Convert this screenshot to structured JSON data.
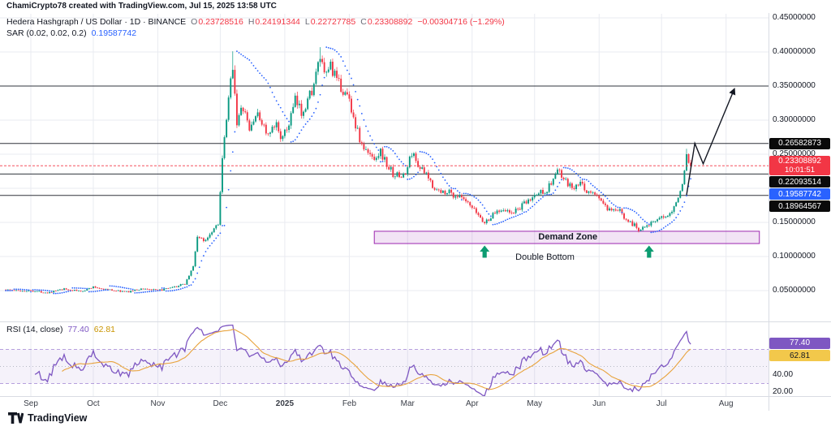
{
  "attribution": "ChamiCrypto78 created with TradingView.com, Jul 15, 2025 13:58 UTC",
  "legend": {
    "title": "Hedera Hashgraph / US Dollar · 1D · BINANCE",
    "o_label": "O",
    "o_value": "0.23728516",
    "h_label": "H",
    "h_value": "0.24191344",
    "l_label": "L",
    "l_value": "0.22727785",
    "c_label": "C",
    "c_value": "0.23308892",
    "change": "−0.00304716 (−1.29%)",
    "sar_label": "SAR (0.02, 0.02, 0.2)",
    "sar_value": "0.19587742",
    "rsi_label": "RSI (14, close)",
    "rsi_value": "77.40",
    "rsi_ma_value": "62.81"
  },
  "price_axis": {
    "plain": [
      {
        "text": "0.45000000",
        "value": 0.45
      },
      {
        "text": "0.40000000",
        "value": 0.4
      },
      {
        "text": "0.35000000",
        "value": 0.35
      },
      {
        "text": "0.30000000",
        "value": 0.3
      },
      {
        "text": "0.25000000",
        "value": 0.25
      },
      {
        "text": "0.15000000",
        "value": 0.15
      },
      {
        "text": "0.10000000",
        "value": 0.1
      },
      {
        "text": "0.05000000",
        "value": 0.05
      }
    ],
    "boxed": [
      {
        "text": "0.26582873",
        "value": 0.26582873,
        "style": "black"
      },
      {
        "text": "0.23308892",
        "line2": "10:01:51",
        "value": 0.23308892,
        "style": "red"
      },
      {
        "text": "0.22093514",
        "value": 0.22093514,
        "style": "black"
      },
      {
        "text": "0.19587742",
        "value": 0.19587742,
        "style": "blue"
      },
      {
        "text": "0.18964567",
        "value": 0.18964567,
        "style": "black"
      }
    ]
  },
  "rsi_axis": {
    "plain": [
      {
        "text": "40.00",
        "value": 40
      },
      {
        "text": "20.00",
        "value": 20
      }
    ],
    "badges": [
      {
        "text": "77.40",
        "value": 77.4,
        "style": "purple"
      },
      {
        "text": "62.81",
        "value": 62.81,
        "style": "yellow"
      }
    ]
  },
  "time_axis": {
    "labels": [
      {
        "text": "Sep",
        "day": 0
      },
      {
        "text": "Oct",
        "day": 30
      },
      {
        "text": "Nov",
        "day": 61
      },
      {
        "text": "Dec",
        "day": 91
      },
      {
        "text": "2025",
        "day": 122,
        "bold": true
      },
      {
        "text": "Feb",
        "day": 153
      },
      {
        "text": "Mar",
        "day": 181
      },
      {
        "text": "Apr",
        "day": 212
      },
      {
        "text": "May",
        "day": 242
      },
      {
        "text": "Jun",
        "day": 273
      },
      {
        "text": "Jul",
        "day": 303
      },
      {
        "text": "Aug",
        "day": 334
      }
    ]
  },
  "annotations": {
    "demand_zone_label": "Demand Zone",
    "demand_zone_label_day": 258,
    "double_bottom_label": "Double Bottom",
    "double_bottom_label_day": 247
  },
  "logo": {
    "name": "TradingView"
  },
  "colors": {
    "up": "#089981",
    "down": "#F23645",
    "sar": "#2962FF",
    "rsi": "#7E57C2",
    "rsi_ma": "#E8A33D",
    "rsi_band_fill": "rgba(126,87,194,0.08)",
    "rsi_band_line": "rgba(126,87,194,0.55)",
    "grid": "#E9EBF1",
    "separator": "#D9DCE3",
    "hline": "#30343C",
    "zone_fill": "rgba(156,39,176,0.13)",
    "zone_stroke": "#9C27B0",
    "arrow": "#0C9C71",
    "projection": "#131722"
  },
  "chart_data": {
    "type": "candlestick",
    "title": "Hedera Hashgraph / US Dollar, 1D, BINANCE",
    "x_range": {
      "start": "Sep 2024",
      "end": "Aug 2025"
    },
    "price_axis_values": [
      0.05,
      0.1,
      0.15,
      0.2,
      0.25,
      0.3,
      0.35,
      0.4,
      0.45
    ],
    "day_start": -12,
    "day_end": 317,
    "price_anchors": [
      [
        -12,
        0.0515
      ],
      [
        -6,
        0.0495
      ],
      [
        0,
        0.05
      ],
      [
        8,
        0.047
      ],
      [
        16,
        0.052
      ],
      [
        24,
        0.049
      ],
      [
        30,
        0.055
      ],
      [
        38,
        0.051
      ],
      [
        46,
        0.048
      ],
      [
        54,
        0.053
      ],
      [
        61,
        0.05
      ],
      [
        68,
        0.054
      ],
      [
        74,
        0.06
      ],
      [
        78,
        0.085
      ],
      [
        80,
        0.13
      ],
      [
        83,
        0.122
      ],
      [
        87,
        0.138
      ],
      [
        90,
        0.15
      ],
      [
        92,
        0.24
      ],
      [
        94,
        0.3
      ],
      [
        97,
        0.383
      ],
      [
        99,
        0.298
      ],
      [
        102,
        0.318
      ],
      [
        105,
        0.285
      ],
      [
        108,
        0.308
      ],
      [
        111,
        0.298
      ],
      [
        114,
        0.275
      ],
      [
        118,
        0.293
      ],
      [
        121,
        0.272
      ],
      [
        124,
        0.295
      ],
      [
        127,
        0.328
      ],
      [
        130,
        0.312
      ],
      [
        133,
        0.33
      ],
      [
        136,
        0.352
      ],
      [
        139,
        0.392
      ],
      [
        141,
        0.362
      ],
      [
        144,
        0.382
      ],
      [
        147,
        0.356
      ],
      [
        150,
        0.344
      ],
      [
        153,
        0.33
      ],
      [
        156,
        0.293
      ],
      [
        159,
        0.262
      ],
      [
        162,
        0.25
      ],
      [
        165,
        0.246
      ],
      [
        168,
        0.254
      ],
      [
        171,
        0.234
      ],
      [
        174,
        0.222
      ],
      [
        177,
        0.217
      ],
      [
        180,
        0.221
      ],
      [
        183,
        0.253
      ],
      [
        185,
        0.241
      ],
      [
        188,
        0.226
      ],
      [
        191,
        0.214
      ],
      [
        194,
        0.201
      ],
      [
        197,
        0.193
      ],
      [
        200,
        0.197
      ],
      [
        203,
        0.19
      ],
      [
        206,
        0.187
      ],
      [
        209,
        0.179
      ],
      [
        212,
        0.17
      ],
      [
        215,
        0.161
      ],
      [
        218,
        0.149
      ],
      [
        221,
        0.158
      ],
      [
        224,
        0.167
      ],
      [
        227,
        0.171
      ],
      [
        230,
        0.163
      ],
      [
        233,
        0.167
      ],
      [
        236,
        0.174
      ],
      [
        239,
        0.181
      ],
      [
        242,
        0.189
      ],
      [
        245,
        0.195
      ],
      [
        248,
        0.198
      ],
      [
        251,
        0.214
      ],
      [
        253,
        0.227
      ],
      [
        255,
        0.217
      ],
      [
        258,
        0.205
      ],
      [
        261,
        0.199
      ],
      [
        264,
        0.207
      ],
      [
        267,
        0.196
      ],
      [
        270,
        0.192
      ],
      [
        273,
        0.187
      ],
      [
        276,
        0.172
      ],
      [
        279,
        0.164
      ],
      [
        282,
        0.169
      ],
      [
        285,
        0.159
      ],
      [
        288,
        0.151
      ],
      [
        292,
        0.139
      ],
      [
        295,
        0.147
      ],
      [
        298,
        0.149
      ],
      [
        301,
        0.151
      ],
      [
        303,
        0.156
      ],
      [
        306,
        0.163
      ],
      [
        309,
        0.173
      ],
      [
        311,
        0.186
      ],
      [
        313,
        0.206
      ],
      [
        314,
        0.226
      ],
      [
        315,
        0.25
      ],
      [
        316,
        0.2373
      ],
      [
        317,
        0.23308892
      ]
    ],
    "spikes": [
      [
        97,
        0.401
      ],
      [
        139,
        0.407
      ],
      [
        315,
        0.258
      ]
    ],
    "last_candle": {
      "open": 0.23728516,
      "high": 0.24191344,
      "low": 0.22727785,
      "close": 0.23308892
    },
    "psar": {
      "start": 0.02,
      "increment": 0.02,
      "max": 0.2,
      "last_value": 0.19587742
    },
    "rsi": {
      "length": 14,
      "source": "close",
      "last_value": 77.4,
      "ma_last_value": 62.81,
      "band": [
        30,
        70
      ],
      "middle": 50
    },
    "hlines": [
      0.35,
      0.26582873,
      0.22093514,
      0.18964567
    ],
    "price_line": 0.23308892,
    "demand_zone": {
      "day_start": 165,
      "day_end": 350,
      "price_top": 0.137,
      "price_bottom": 0.119
    },
    "arrows_days": [
      218,
      297
    ],
    "projection_points": [
      [
        315,
        0.19
      ],
      [
        319,
        0.266
      ],
      [
        323,
        0.236
      ],
      [
        338,
        0.346
      ]
    ]
  }
}
